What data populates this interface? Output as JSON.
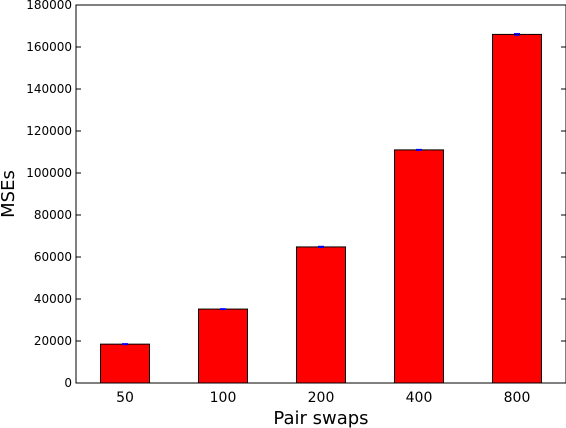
{
  "chart_data": {
    "type": "bar",
    "title": "",
    "xlabel": "Pair swaps",
    "ylabel": "MSEs",
    "categories": [
      "50",
      "100",
      "200",
      "400",
      "800"
    ],
    "values": [
      18500,
      35200,
      64800,
      111000,
      166000
    ],
    "errors": [
      250,
      200,
      300,
      250,
      400
    ],
    "ylim": [
      0,
      180000
    ],
    "yticks": [
      0,
      20000,
      40000,
      60000,
      80000,
      100000,
      120000,
      140000,
      160000,
      180000
    ],
    "ytick_labels": [
      "0",
      "20000",
      "40000",
      "60000",
      "80000",
      "100000",
      "120000",
      "140000",
      "160000",
      "180000"
    ],
    "grid": false,
    "legend": "none",
    "bar_color": "#ff0000",
    "edge_color": "#000000",
    "error_color": "#0000ff"
  }
}
